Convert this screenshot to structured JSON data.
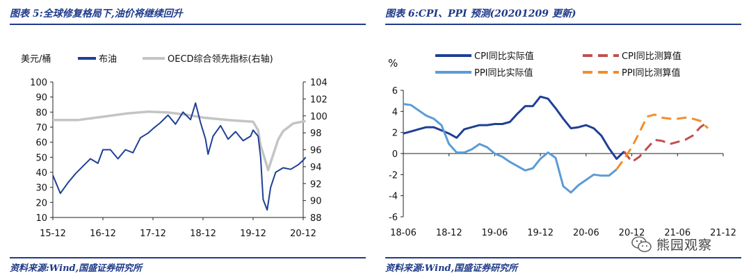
{
  "left": {
    "title": "图表 5:全球修复格局下,油价将继续回升",
    "source": "资料来源:Wind,国盛证券研究所",
    "left_unit": "美元/桶",
    "chart_data": {
      "type": "line",
      "x_ticks": [
        "15-12",
        "16-12",
        "17-12",
        "18-12",
        "19-12",
        "20-12"
      ],
      "y_left": {
        "ticks": [
          "100",
          "90",
          "80",
          "70",
          "60",
          "50",
          "40",
          "30",
          "20",
          "10"
        ],
        "ylim": [
          10,
          100
        ]
      },
      "y_right": {
        "ticks": [
          "104",
          "102",
          "100",
          "98",
          "96",
          "94",
          "92",
          "90",
          "88"
        ],
        "ylim": [
          88,
          104
        ]
      },
      "series": [
        {
          "name": "布油",
          "axis": "left",
          "color": "#1f3f96",
          "x": [
            0,
            0.15,
            0.3,
            0.45,
            0.6,
            0.75,
            0.9,
            1.0,
            1.15,
            1.3,
            1.45,
            1.6,
            1.75,
            1.9,
            2.0,
            2.15,
            2.3,
            2.45,
            2.6,
            2.75,
            2.85,
            2.95,
            3.05,
            3.1,
            3.2,
            3.35,
            3.5,
            3.65,
            3.8,
            3.95,
            4.0,
            4.1,
            4.15,
            4.2,
            4.28,
            4.35,
            4.45,
            4.6,
            4.75,
            4.9,
            5.0,
            5.05
          ],
          "y": [
            38,
            26,
            33,
            39,
            44,
            49,
            46,
            55,
            55,
            49,
            55,
            53,
            63,
            66,
            69,
            73,
            78,
            72,
            80,
            75,
            86,
            73,
            62,
            52,
            64,
            71,
            62,
            67,
            61,
            64,
            68,
            64,
            50,
            22,
            15,
            30,
            40,
            43,
            42,
            45,
            48,
            50
          ]
        },
        {
          "name": "OECD综合领先指标(右轴)",
          "axis": "right",
          "color": "#c4c4c4",
          "x": [
            0,
            0.5,
            1.0,
            1.5,
            1.9,
            2.3,
            2.7,
            3.0,
            3.5,
            4.0,
            4.1,
            4.15,
            4.25,
            4.3,
            4.4,
            4.5,
            4.6,
            4.8,
            5.05
          ],
          "y": [
            99.5,
            99.5,
            99.9,
            100.3,
            100.5,
            100.4,
            100.1,
            99.8,
            99.5,
            99.3,
            98.3,
            96.5,
            94.6,
            93.6,
            95.4,
            97.2,
            98.2,
            99.1,
            99.4
          ]
        }
      ],
      "grid": false,
      "legend": "top"
    }
  },
  "right": {
    "title": "图表 6:CPI、PPI 预测(20201209 更新)",
    "source": "资料来源:Wind,国盛证券研究所",
    "y_unit": "%",
    "chart_data": {
      "type": "line",
      "x_ticks": [
        "18-06",
        "18-12",
        "19-06",
        "19-12",
        "20-06",
        "20-12",
        "21-06",
        "21-12"
      ],
      "ylim": [
        -6,
        6
      ],
      "y_ticks": [
        "6",
        "4",
        "2",
        "0",
        "-2",
        "-4",
        "-6"
      ],
      "x_unit": "months since 2018-06",
      "series": [
        {
          "name": "CPI同比实际值",
          "color": "#1f3f96",
          "dash": false,
          "x": [
            0,
            1,
            2,
            3,
            4,
            5,
            6,
            7,
            8,
            9,
            10,
            11,
            12,
            13,
            14,
            15,
            16,
            17,
            18,
            19,
            20,
            21,
            22,
            23,
            24,
            25,
            26,
            27,
            28,
            29
          ],
          "y": [
            1.9,
            2.1,
            2.3,
            2.5,
            2.5,
            2.2,
            1.9,
            1.5,
            2.3,
            2.5,
            2.7,
            2.7,
            2.8,
            2.8,
            3.0,
            3.8,
            4.5,
            4.5,
            5.4,
            5.2,
            4.3,
            3.3,
            2.4,
            2.5,
            2.7,
            2.4,
            1.7,
            0.5,
            -0.5,
            0.2
          ]
        },
        {
          "name": "PPI同比实际值",
          "color": "#5b9bd5",
          "dash": false,
          "x": [
            0,
            1,
            2,
            3,
            4,
            5,
            6,
            7,
            8,
            9,
            10,
            11,
            12,
            13,
            14,
            15,
            16,
            17,
            18,
            19,
            20,
            21,
            22,
            23,
            24,
            25,
            26,
            27,
            28
          ],
          "y": [
            4.7,
            4.6,
            4.1,
            3.6,
            3.3,
            2.7,
            0.9,
            0.1,
            0.1,
            0.4,
            0.9,
            0.6,
            0.0,
            -0.3,
            -0.8,
            -1.2,
            -1.6,
            -1.4,
            -0.5,
            0.1,
            -0.4,
            -3.1,
            -3.7,
            -3.0,
            -2.5,
            -2.0,
            -2.1,
            -2.1,
            -1.5
          ]
        },
        {
          "name": "CPI同比测算值",
          "color": "#c0504d",
          "dash": true,
          "x": [
            29,
            30,
            31,
            32,
            33,
            34,
            35,
            36,
            37,
            38,
            39,
            40
          ],
          "y": [
            0.2,
            -0.8,
            -0.3,
            0.5,
            1.3,
            1.2,
            0.9,
            1.1,
            1.3,
            1.7,
            2.5,
            3.0
          ]
        },
        {
          "name": "PPI同比测算值",
          "color": "#f28e2b",
          "dash": true,
          "x": [
            28,
            29,
            30,
            31,
            32,
            33,
            34,
            35,
            36,
            37,
            38,
            39,
            40
          ],
          "y": [
            -1.5,
            -0.5,
            0.6,
            2.0,
            3.5,
            3.7,
            3.4,
            3.3,
            3.3,
            3.4,
            3.3,
            3.1,
            2.4
          ]
        }
      ],
      "grid": false,
      "legend": "top"
    }
  },
  "watermark": {
    "text": "熊园观察",
    "icon": "wechat-icon"
  }
}
